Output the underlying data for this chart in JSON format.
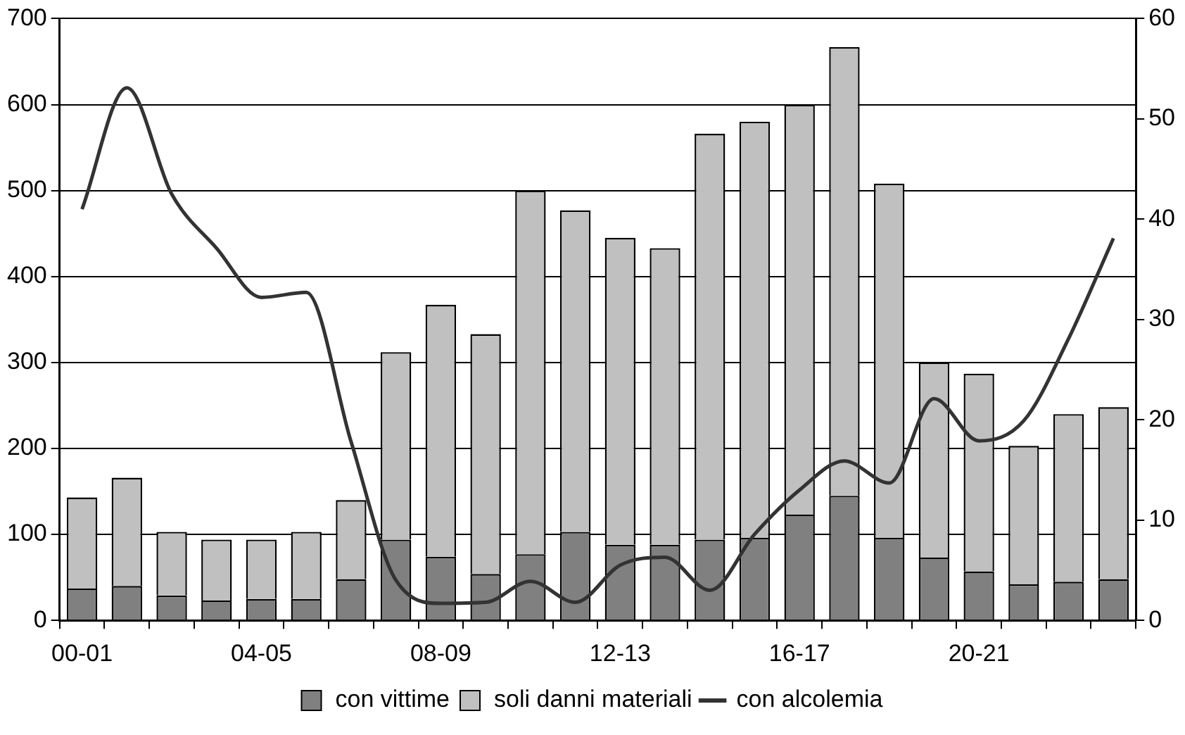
{
  "chart_data": {
    "type": "bar",
    "stacked": true,
    "categories": [
      "00-01",
      null,
      null,
      null,
      "04-05",
      null,
      null,
      null,
      "08-09",
      null,
      null,
      null,
      "12-13",
      null,
      null,
      null,
      "16-17",
      null,
      null,
      null,
      "20-21",
      null,
      null,
      null
    ],
    "series": [
      {
        "name": "con vittime",
        "color": "#808080",
        "values": [
          37,
          40,
          29,
          23,
          25,
          25,
          48,
          94,
          74,
          54,
          77,
          103,
          88,
          88,
          94,
          96,
          123,
          145,
          96,
          73,
          57,
          42,
          45,
          48
        ]
      },
      {
        "name": "soli danni materiali",
        "color": "#c0c0c0",
        "values": [
          106,
          126,
          74,
          71,
          69,
          78,
          92,
          218,
          293,
          279,
          423,
          374,
          357,
          345,
          472,
          484,
          477,
          522,
          412,
          227,
          230,
          161,
          195,
          200
        ]
      },
      {
        "name": "con alcolemia",
        "type": "line",
        "axis": "y2",
        "color": "#333333",
        "values": [
          41.0,
          53.1,
          42.5,
          37.1,
          32.2,
          32.7,
          17.8,
          4.0,
          1.7,
          1.8,
          3.9,
          1.8,
          5.5,
          6.3,
          3.0,
          8.6,
          13.0,
          15.9,
          13.7,
          22.1,
          17.9,
          19.9,
          28.1,
          38.1
        ]
      }
    ],
    "ylim": [
      0,
      700
    ],
    "yticks": [
      0,
      100,
      200,
      300,
      400,
      500,
      600,
      700
    ],
    "y2lim": [
      0,
      60
    ],
    "y2ticks": [
      0,
      10,
      20,
      30,
      40,
      50,
      60
    ],
    "grid": "y",
    "legend": "bottom",
    "marker": "none",
    "line_style": "solid"
  }
}
